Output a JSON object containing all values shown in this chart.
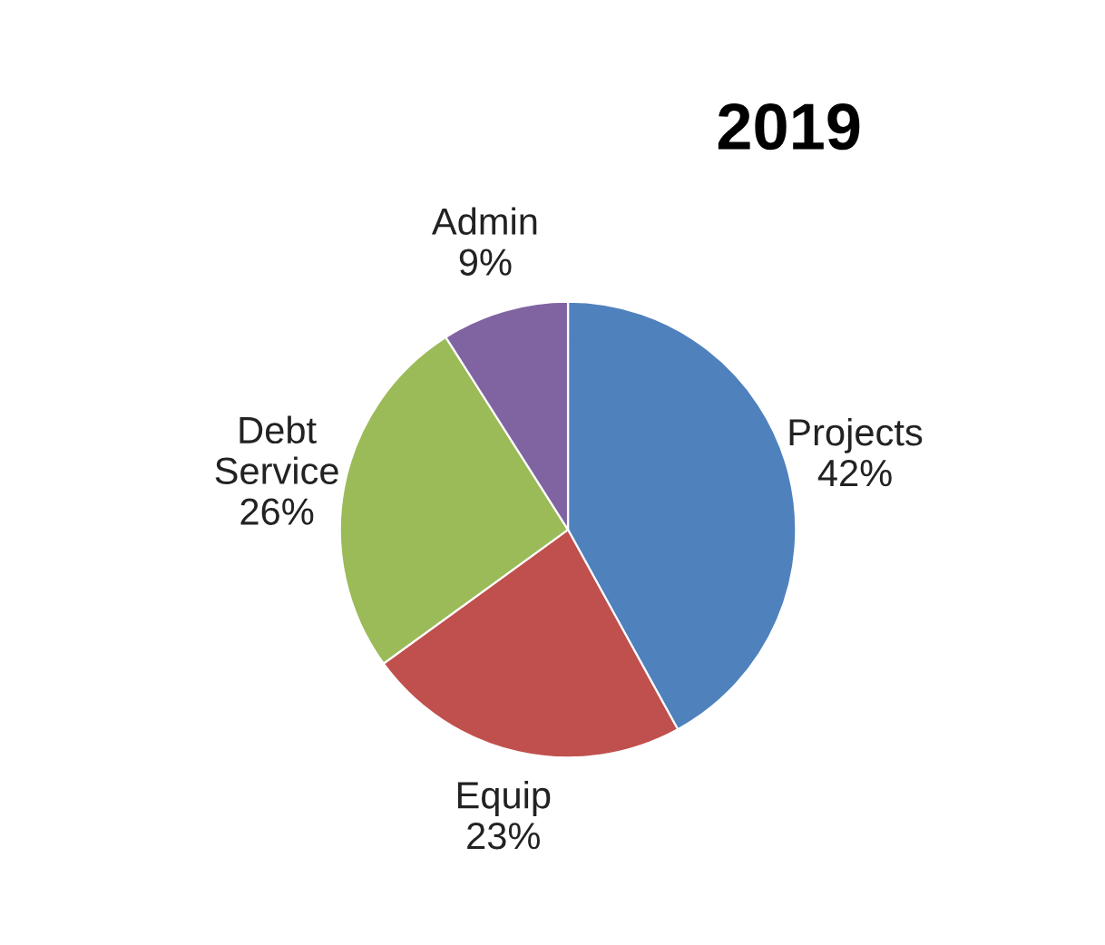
{
  "chart_data": {
    "type": "pie",
    "title": "2019",
    "categories": [
      "Projects",
      "Equip",
      "Debt Service",
      "Admin"
    ],
    "values": [
      42,
      23,
      26,
      9
    ],
    "colors": [
      "#4f81bd",
      "#c0504d",
      "#9bbb59",
      "#8064a2"
    ],
    "value_labels": [
      "42%",
      "23%",
      "26%",
      "9%"
    ]
  }
}
